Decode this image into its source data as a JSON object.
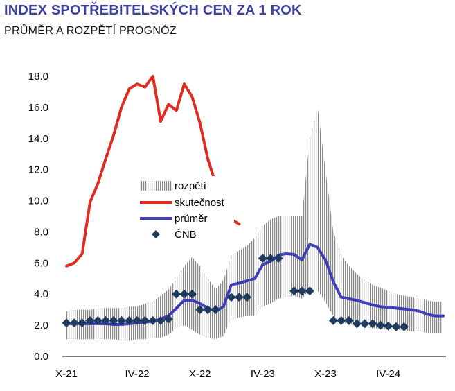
{
  "title": "INDEX SPOTŘEBITELSKÝCH CEN ZA 1 ROK",
  "subtitle": "PRŮMĚR A ROZPĚTÍ PROGNÓZ",
  "colors": {
    "title": "#3b3f9f",
    "actual": "#e02b20",
    "average": "#3f3db8",
    "cnb": "#1f3a5f",
    "range": "#9a9a9a"
  },
  "chart_data": {
    "type": "line",
    "x_tick_labels": [
      "X-21",
      "IV-22",
      "X-22",
      "IV-23",
      "X-23",
      "IV-24"
    ],
    "y_tick_labels": [
      "0.0",
      "2.0",
      "4.0",
      "6.0",
      "8.0",
      "10.0",
      "12.0",
      "14.0",
      "16.0",
      "18.0"
    ],
    "ylim": [
      0,
      18
    ],
    "x_count": 49,
    "x_tick_positions": [
      0,
      9,
      17,
      25,
      33,
      41
    ],
    "grid": false,
    "legend": {
      "placement": "center",
      "entries": [
        {
          "key": "range",
          "label": "rozpětí",
          "symbol": "hatched-bar"
        },
        {
          "key": "actual",
          "label": "skutečnost",
          "symbol": "line"
        },
        {
          "key": "average",
          "label": "průměr",
          "symbol": "line"
        },
        {
          "key": "cnb",
          "label": "ČNB",
          "symbol": "diamond"
        }
      ]
    },
    "series": {
      "actual": {
        "name": "skutečnost",
        "values": [
          5.8,
          6.0,
          6.6,
          9.9,
          11.1,
          12.7,
          14.2,
          16.0,
          17.2,
          17.5,
          17.3,
          18.0,
          15.1,
          16.2,
          15.8,
          17.5,
          16.7,
          15.0,
          12.7,
          11.1,
          9.7,
          8.8,
          8.5
        ]
      },
      "average": {
        "name": "průměr",
        "values": [
          2.1,
          2.1,
          2.1,
          2.1,
          2.1,
          2.1,
          2.05,
          2.05,
          2.1,
          2.15,
          2.2,
          2.25,
          2.4,
          2.6,
          3.1,
          3.6,
          3.6,
          3.4,
          3.1,
          2.9,
          3.2,
          4.6,
          4.7,
          4.85,
          5.0,
          5.9,
          6.1,
          6.5,
          6.6,
          6.55,
          6.2,
          7.2,
          7.0,
          6.2,
          4.8,
          3.8,
          3.7,
          3.6,
          3.45,
          3.3,
          3.2,
          3.15,
          3.1,
          3.05,
          3.0,
          2.9,
          2.7,
          2.6,
          2.6
        ]
      },
      "range_low": {
        "values": [
          1.1,
          1.1,
          1.1,
          1.1,
          1.1,
          1.1,
          1.1,
          1.0,
          1.0,
          1.1,
          1.1,
          1.2,
          1.2,
          1.4,
          1.8,
          2.0,
          1.7,
          1.4,
          1.2,
          1.1,
          1.3,
          2.4,
          2.5,
          2.6,
          2.6,
          3.2,
          3.4,
          3.7,
          3.8,
          3.9,
          3.7,
          4.3,
          4.2,
          3.5,
          2.6,
          2.2,
          2.1,
          2.0,
          1.9,
          1.8,
          1.8,
          1.7,
          1.7,
          1.7,
          1.6,
          1.6,
          1.5,
          1.5,
          1.5
        ]
      },
      "range_high": {
        "values": [
          2.9,
          3.0,
          3.0,
          3.0,
          3.1,
          3.1,
          3.1,
          3.1,
          3.2,
          3.2,
          3.4,
          3.5,
          3.9,
          4.3,
          5.0,
          5.8,
          6.4,
          5.8,
          5.0,
          4.3,
          4.9,
          6.5,
          6.8,
          7.1,
          7.6,
          8.4,
          8.8,
          9.0,
          9.0,
          9.0,
          9.0,
          14.0,
          16.0,
          12.0,
          8.0,
          6.5,
          5.8,
          5.3,
          4.9,
          4.6,
          4.4,
          4.2,
          4.0,
          3.9,
          3.8,
          3.7,
          3.6,
          3.5,
          3.5
        ]
      },
      "cnb": {
        "name": "ČNB",
        "points": [
          [
            0,
            2.15
          ],
          [
            1,
            2.15
          ],
          [
            2,
            2.15
          ],
          [
            3,
            2.3
          ],
          [
            4,
            2.3
          ],
          [
            5,
            2.3
          ],
          [
            6,
            2.3
          ],
          [
            7,
            2.3
          ],
          [
            8,
            2.3
          ],
          [
            9,
            2.3
          ],
          [
            10,
            2.3
          ],
          [
            11,
            2.3
          ],
          [
            12,
            2.3
          ],
          [
            13,
            2.4
          ],
          [
            14,
            4.0
          ],
          [
            15,
            4.0
          ],
          [
            16,
            4.0
          ],
          [
            17,
            3.0
          ],
          [
            18,
            3.0
          ],
          [
            19,
            3.0
          ],
          [
            21,
            3.8
          ],
          [
            22,
            3.8
          ],
          [
            23,
            3.8
          ],
          [
            25,
            6.3
          ],
          [
            26,
            6.3
          ],
          [
            27,
            6.3
          ],
          [
            29,
            4.2
          ],
          [
            30,
            4.2
          ],
          [
            31,
            4.2
          ],
          [
            34,
            2.3
          ],
          [
            35,
            2.3
          ],
          [
            36,
            2.3
          ],
          [
            37,
            2.1
          ],
          [
            38,
            2.1
          ],
          [
            39,
            2.1
          ],
          [
            40,
            2.0
          ],
          [
            41,
            1.95
          ],
          [
            42,
            1.9
          ],
          [
            43,
            1.9
          ]
        ]
      }
    }
  }
}
